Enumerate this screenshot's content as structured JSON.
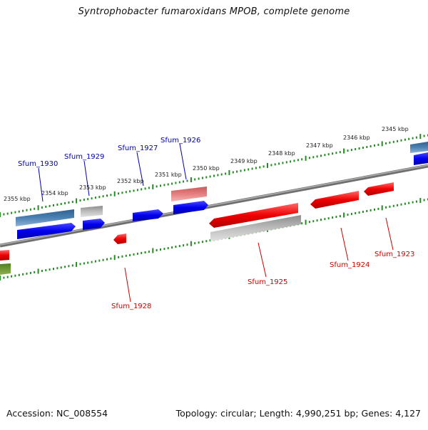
{
  "header": {
    "title": "Syntrophobacter fumaroxidans MPOB, complete genome"
  },
  "footer": {
    "accession": "Accession: NC_008554",
    "topology": "Topology: circular; Length: 4,990,251 bp; Genes: 4,127"
  },
  "colors": {
    "forward_strand_label": "#0000aa",
    "reverse_strand_label": "#cc0000",
    "backbone": "#888888",
    "ticks": "#228b22"
  },
  "ruler": {
    "unit": "kbp",
    "ticks": [
      {
        "label": "2345 kbp",
        "kbp": 2345
      },
      {
        "label": "2346 kbp",
        "kbp": 2346
      },
      {
        "label": "2347 kbp",
        "kbp": 2347
      },
      {
        "label": "2348 kbp",
        "kbp": 2348
      },
      {
        "label": "2349 kbp",
        "kbp": 2349
      },
      {
        "label": "2350 kbp",
        "kbp": 2350
      },
      {
        "label": "2351 kbp",
        "kbp": 2351
      },
      {
        "label": "2352 kbp",
        "kbp": 2352
      },
      {
        "label": "2353 kbp",
        "kbp": 2353
      },
      {
        "label": "2354 kbp",
        "kbp": 2354
      },
      {
        "label": "2355 kbp",
        "kbp": 2355
      }
    ]
  },
  "gene_labels": [
    {
      "name": "Sfum_1930",
      "strand": "forward"
    },
    {
      "name": "Sfum_1929",
      "strand": "forward"
    },
    {
      "name": "Sfum_1927",
      "strand": "forward"
    },
    {
      "name": "Sfum_1926",
      "strand": "forward"
    },
    {
      "name": "Sfum_1928",
      "strand": "reverse"
    },
    {
      "name": "Sfum_1925",
      "strand": "reverse"
    },
    {
      "name": "Sfum_1924",
      "strand": "reverse"
    },
    {
      "name": "Sfum_1923",
      "strand": "reverse"
    }
  ]
}
